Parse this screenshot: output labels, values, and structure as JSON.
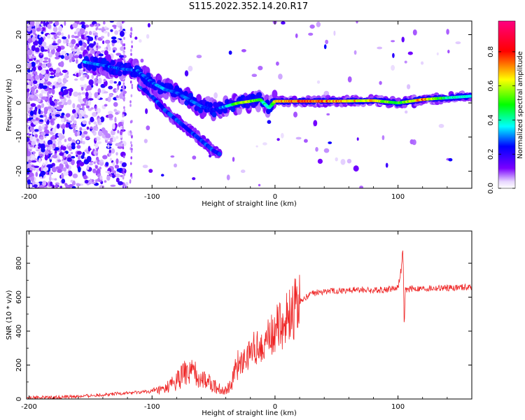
{
  "title": "S115.2022.352.14.20.R17",
  "chart_data": [
    {
      "type": "heatmap",
      "xlabel": "Height of straight line (km)",
      "ylabel": "Frequency (Hz)",
      "xlim": [
        -202,
        160
      ],
      "ylim": [
        -25,
        24
      ],
      "x_ticks": [
        -200,
        -100,
        0,
        100
      ],
      "y_ticks": [
        -20,
        -10,
        0,
        10,
        20
      ],
      "colorbar": {
        "label": "Normalized spectral amplitude",
        "range": [
          0,
          0.98
        ],
        "ticks": [
          0.0,
          0.2,
          0.4,
          0.6,
          0.8
        ],
        "colors": [
          "#ffffff",
          "#7a00ff",
          "#0000ff",
          "#00ffff",
          "#00ff00",
          "#ffff00",
          "#ff0000",
          "#ff0080"
        ]
      },
      "ridge": {
        "x": [
          -155,
          -140,
          -125,
          -112,
          -100,
          -90,
          -80,
          -70,
          -60,
          -50,
          -40,
          -30,
          -20,
          -12,
          -5,
          0,
          20,
          50,
          80,
          100,
          120,
          140,
          160
        ],
        "frequency": [
          12,
          11,
          10,
          9.5,
          6,
          4,
          3,
          1,
          -1,
          -2,
          -1,
          0,
          0.5,
          1,
          -1.5,
          0.5,
          0.5,
          0.5,
          0.7,
          0,
          1,
          1.5,
          2
        ],
        "amplitude": [
          0.35,
          0.3,
          0.3,
          0.3,
          0.3,
          0.35,
          0.3,
          0.3,
          0.3,
          0.25,
          0.35,
          0.6,
          0.6,
          0.5,
          0.4,
          0.7,
          0.85,
          0.75,
          0.7,
          0.5,
          0.8,
          0.45,
          0.4
        ]
      },
      "branch": {
        "x": [
          -110,
          -100,
          -90,
          -80,
          -70,
          -60,
          -50,
          -45
        ],
        "frequency": [
          5,
          2,
          -2,
          -5,
          -8,
          -11,
          -14,
          -15
        ]
      }
    },
    {
      "type": "line",
      "xlabel": "Height of straight line (km)",
      "ylabel": "SNR (10 * v/v)",
      "xlim": [
        -202,
        160
      ],
      "ylim": [
        0,
        990
      ],
      "x_ticks": [
        -200,
        -100,
        0,
        100
      ],
      "y_ticks": [
        0,
        200,
        400,
        600,
        800
      ],
      "series": [
        {
          "color": "#ee2222",
          "x": [
            -202,
            -180,
            -160,
            -140,
            -120,
            -100,
            -90,
            -85,
            -80,
            -75,
            -70,
            -65,
            -60,
            -55,
            -50,
            -45,
            -40,
            -35,
            -30,
            -25,
            -20,
            -15,
            -10,
            -5,
            0,
            5,
            10,
            15,
            20,
            25,
            30,
            40,
            50,
            60,
            70,
            80,
            90,
            95,
            100,
            103,
            104,
            105,
            106,
            110,
            120,
            140,
            160
          ],
          "y": [
            8,
            10,
            15,
            25,
            35,
            45,
            55,
            80,
            110,
            140,
            160,
            150,
            130,
            100,
            80,
            60,
            50,
            100,
            200,
            230,
            280,
            310,
            330,
            360,
            400,
            440,
            480,
            520,
            570,
            600,
            620,
            635,
            640,
            640,
            645,
            640,
            645,
            650,
            660,
            780,
            900,
            420,
            640,
            650,
            650,
            655,
            660
          ]
        }
      ]
    }
  ]
}
